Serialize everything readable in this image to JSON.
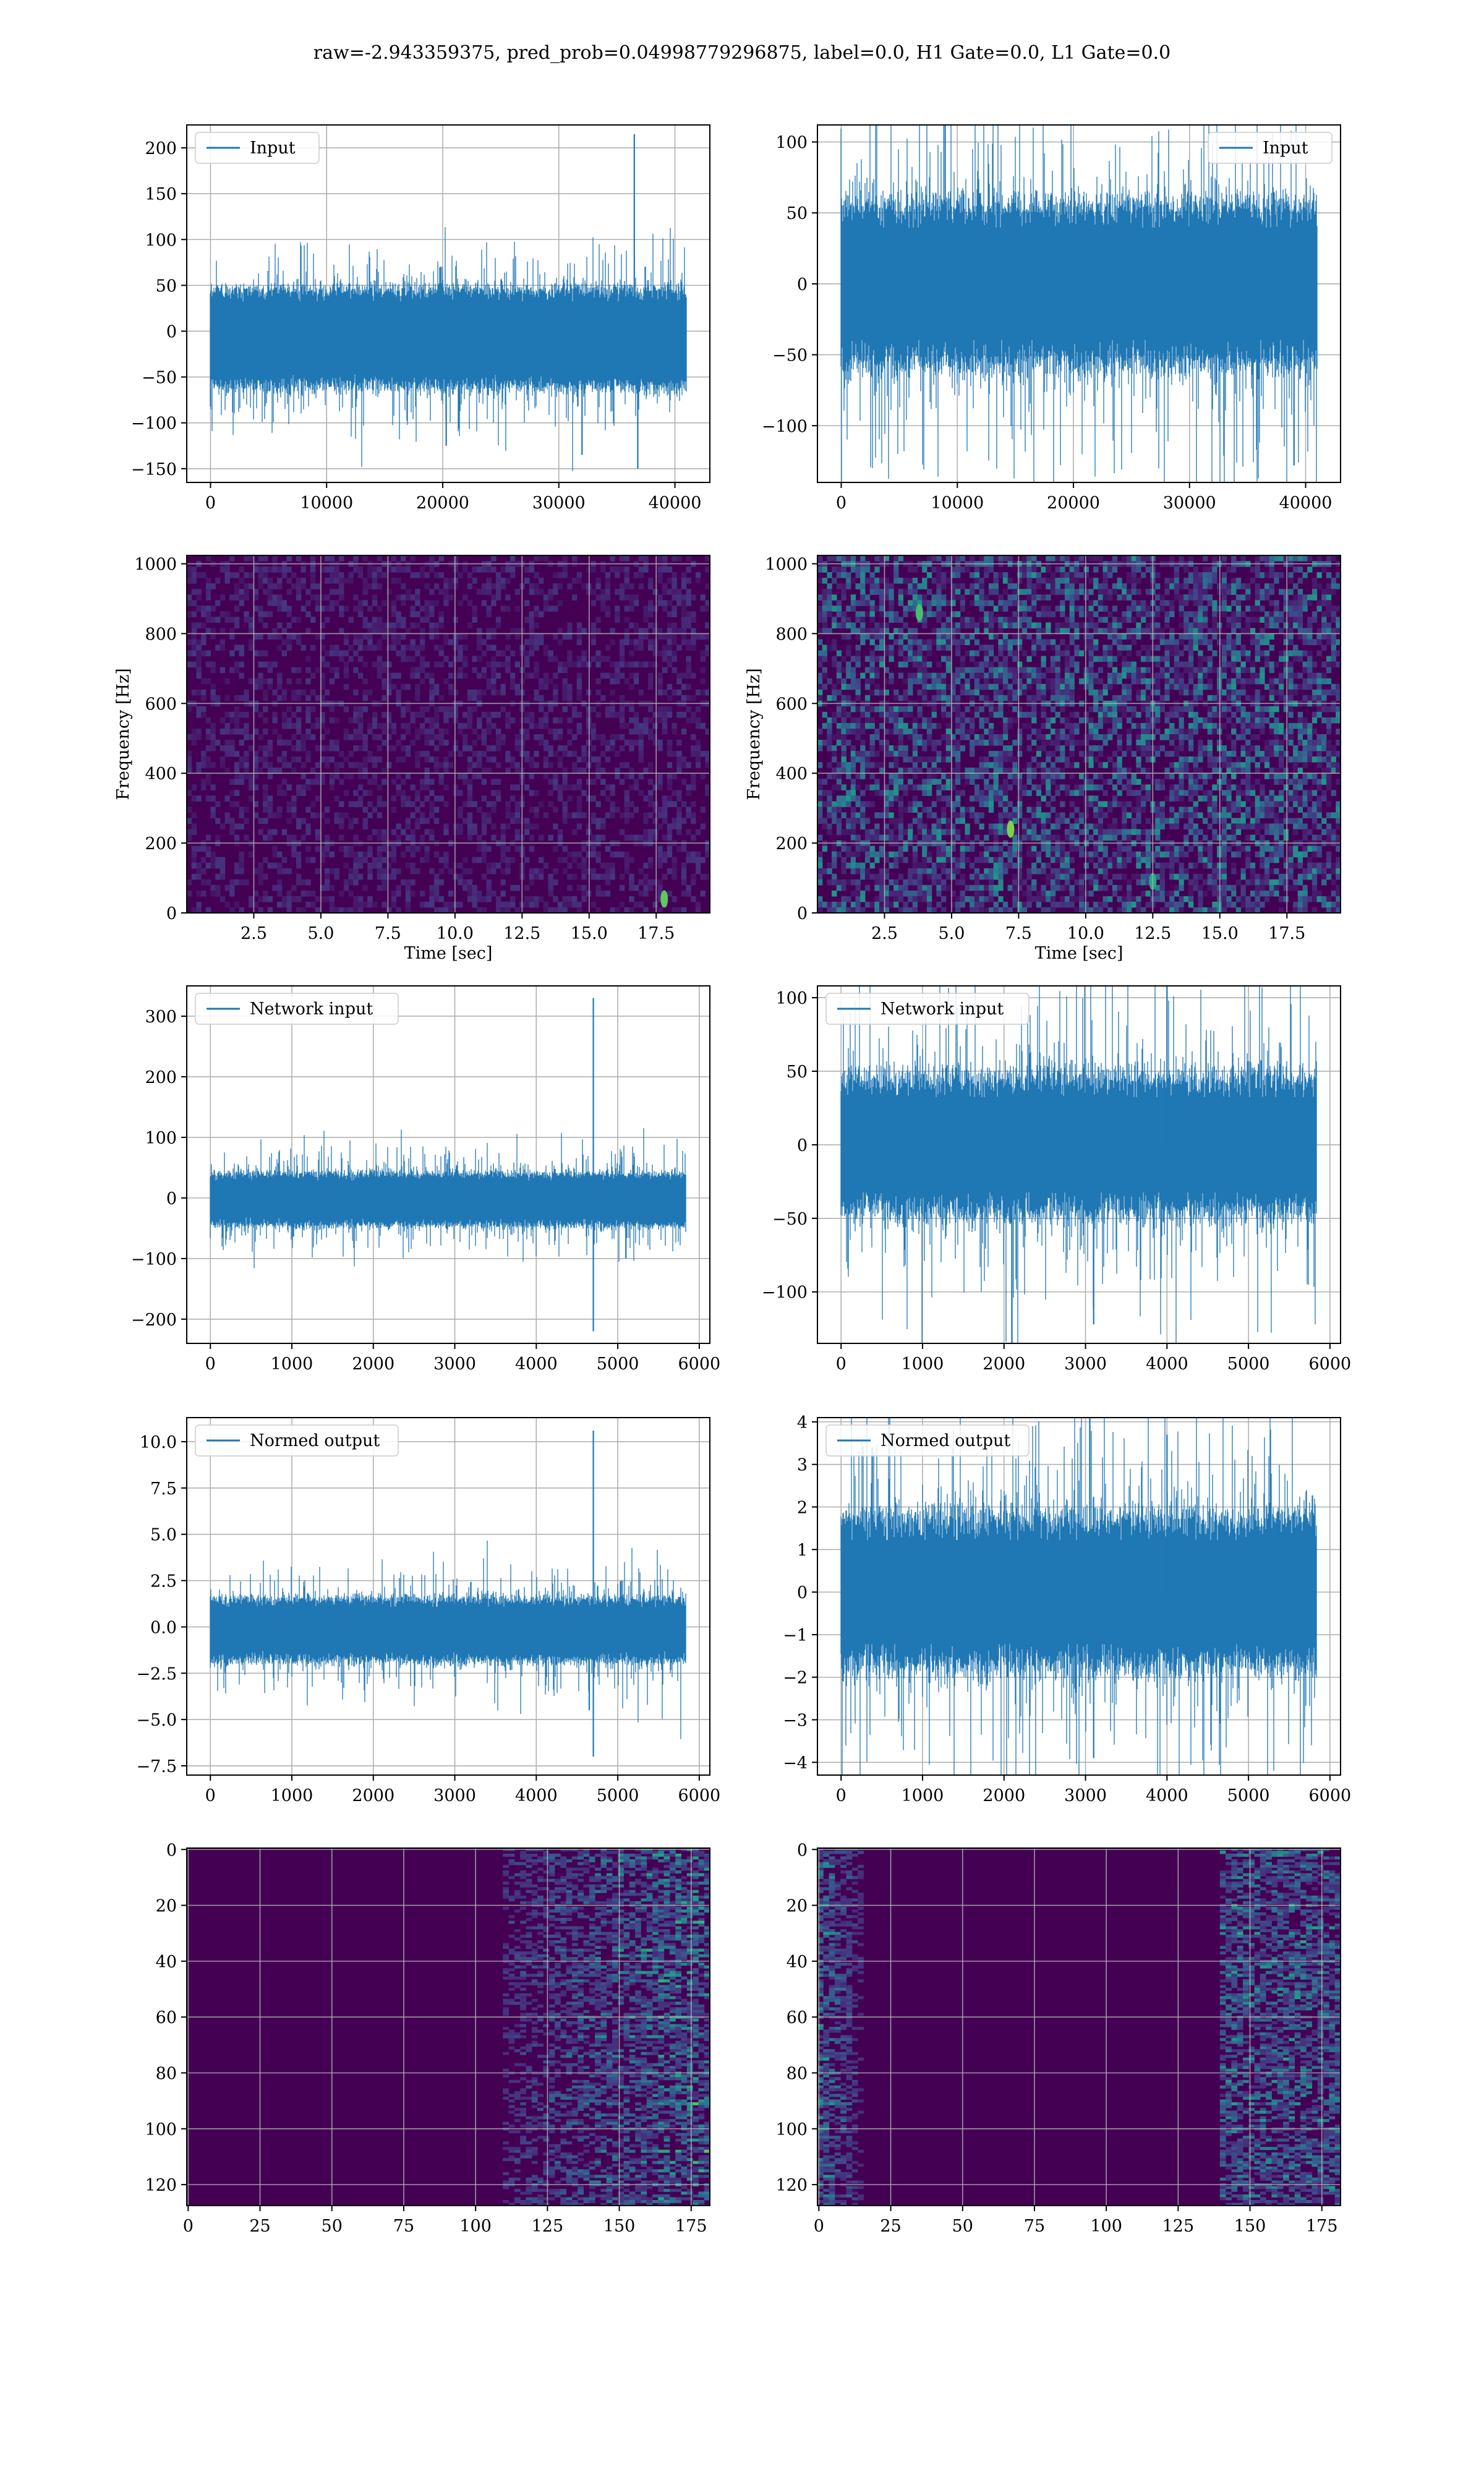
{
  "figure": {
    "title": "raw=-2.943359375, pred_prob=0.04998779296875, label=0.0, H1 Gate=0.0, L1 Gate=0.0",
    "colors": {
      "line": "#1f77b4",
      "grid": "#b0b0b0",
      "viridis_low": "#440154"
    }
  },
  "chart_data": [
    {
      "id": "input-h1",
      "type": "line",
      "row": 0,
      "col": 0,
      "x_count": 40960,
      "xlim": [
        -2048,
        43008
      ],
      "ylim": [
        -165,
        225
      ],
      "xticks": [
        0,
        10000,
        20000,
        30000,
        40000
      ],
      "xtick_labels": [
        "0",
        "10000",
        "20000",
        "30000",
        "40000"
      ],
      "yticks": [
        -150,
        -100,
        -50,
        0,
        50,
        100,
        150,
        200
      ],
      "ytick_labels": [
        "−150",
        "−100",
        "−50",
        "0",
        "50",
        "100",
        "150",
        "200"
      ],
      "legend": {
        "label": "Input",
        "loc": "upper left"
      },
      "xlabel": "",
      "ylabel": "",
      "envelope": {
        "mean": 0,
        "std": 20,
        "core_low": -60,
        "core_high": 45
      },
      "spikes": [
        {
          "x": 36500,
          "y": 215
        },
        {
          "x": 36800,
          "y": -150
        },
        {
          "x": 20300,
          "y": -125
        },
        {
          "x": 32000,
          "y": -135
        }
      ]
    },
    {
      "id": "input-l1",
      "type": "line",
      "row": 0,
      "col": 1,
      "x_count": 40960,
      "xlim": [
        -2048,
        43008
      ],
      "ylim": [
        -140,
        112
      ],
      "xticks": [
        0,
        10000,
        20000,
        30000,
        40000
      ],
      "xtick_labels": [
        "0",
        "10000",
        "20000",
        "30000",
        "40000"
      ],
      "yticks": [
        -100,
        -50,
        0,
        50,
        100
      ],
      "ytick_labels": [
        "−100",
        "−50",
        "0",
        "50",
        "100"
      ],
      "legend": {
        "label": "Input",
        "loc": "upper right"
      },
      "xlabel": "",
      "ylabel": "",
      "envelope": {
        "mean": 0,
        "std": 28,
        "core_low": -55,
        "core_high": 55
      },
      "spikes": [
        {
          "x": 39000,
          "y": -128
        }
      ]
    },
    {
      "id": "spec-h1",
      "type": "heatmap",
      "row": 1,
      "col": 0,
      "variant": "spectrogram",
      "xlim": [
        0,
        19.5
      ],
      "ylim": [
        0,
        1024
      ],
      "xticks": [
        2.5,
        5.0,
        7.5,
        10.0,
        12.5,
        15.0,
        17.5
      ],
      "xtick_labels": [
        "2.5",
        "5.0",
        "7.5",
        "10.0",
        "12.5",
        "15.0",
        "17.5"
      ],
      "yticks": [
        0,
        200,
        400,
        600,
        800,
        1000
      ],
      "ytick_labels": [
        "0",
        "200",
        "400",
        "600",
        "800",
        "1000"
      ],
      "xlabel": "Time [sec]",
      "ylabel": "Frequency [Hz]",
      "intensity": 0.12,
      "hotspots": [
        {
          "x": 17.8,
          "y": 40,
          "v": 0.75
        }
      ]
    },
    {
      "id": "spec-l1",
      "type": "heatmap",
      "row": 1,
      "col": 1,
      "variant": "spectrogram",
      "xlim": [
        0,
        19.5
      ],
      "ylim": [
        0,
        1024
      ],
      "xticks": [
        2.5,
        5.0,
        7.5,
        10.0,
        12.5,
        15.0,
        17.5
      ],
      "xtick_labels": [
        "2.5",
        "5.0",
        "7.5",
        "10.0",
        "12.5",
        "15.0",
        "17.5"
      ],
      "yticks": [
        0,
        200,
        400,
        600,
        800,
        1000
      ],
      "ytick_labels": [
        "0",
        "200",
        "400",
        "600",
        "800",
        "1000"
      ],
      "xlabel": "Time [sec]",
      "ylabel": "Frequency [Hz]",
      "intensity": 0.42,
      "hotspots": [
        {
          "x": 7.2,
          "y": 240,
          "v": 0.8
        },
        {
          "x": 12.5,
          "y": 90,
          "v": 0.6
        },
        {
          "x": 3.8,
          "y": 860,
          "v": 0.7
        }
      ]
    },
    {
      "id": "net-input-h1",
      "type": "line",
      "row": 2,
      "col": 0,
      "x_count": 5834,
      "xlim": [
        -290,
        6130
      ],
      "ylim": [
        -240,
        350
      ],
      "xticks": [
        0,
        1000,
        2000,
        3000,
        4000,
        5000,
        6000
      ],
      "xtick_labels": [
        "0",
        "1000",
        "2000",
        "3000",
        "4000",
        "5000",
        "6000"
      ],
      "yticks": [
        -200,
        -100,
        0,
        100,
        200,
        300
      ],
      "ytick_labels": [
        "−200",
        "−100",
        "0",
        "100",
        "200",
        "300"
      ],
      "legend": {
        "label": "Network input",
        "loc": "upper left"
      },
      "xlabel": "",
      "ylabel": "",
      "envelope": {
        "mean": 0,
        "std": 16,
        "core_low": -45,
        "core_high": 40
      },
      "spikes": [
        {
          "x": 4700,
          "y": 330
        },
        {
          "x": 4700,
          "y": -220
        },
        {
          "x": 5100,
          "y": -100
        }
      ]
    },
    {
      "id": "net-input-l1",
      "type": "line",
      "row": 2,
      "col": 1,
      "x_count": 5834,
      "xlim": [
        -290,
        6130
      ],
      "ylim": [
        -135,
        108
      ],
      "xticks": [
        0,
        1000,
        2000,
        3000,
        4000,
        5000,
        6000
      ],
      "xtick_labels": [
        "0",
        "1000",
        "2000",
        "3000",
        "4000",
        "5000",
        "6000"
      ],
      "yticks": [
        -100,
        -50,
        0,
        50,
        100
      ],
      "ytick_labels": [
        "−100",
        "−50",
        "0",
        "50",
        "100"
      ],
      "legend": {
        "label": "Network input",
        "loc": "upper left"
      },
      "xlabel": "",
      "ylabel": "",
      "envelope": {
        "mean": 0,
        "std": 25,
        "core_low": -45,
        "core_high": 45
      },
      "spikes": [
        {
          "x": 4000,
          "y": 115
        },
        {
          "x": 3100,
          "y": -122
        }
      ]
    },
    {
      "id": "normed-h1",
      "type": "line",
      "row": 3,
      "col": 0,
      "x_count": 5834,
      "xlim": [
        -290,
        6130
      ],
      "ylim": [
        -8,
        11.3
      ],
      "xticks": [
        0,
        1000,
        2000,
        3000,
        4000,
        5000,
        6000
      ],
      "xtick_labels": [
        "0",
        "1000",
        "2000",
        "3000",
        "4000",
        "5000",
        "6000"
      ],
      "yticks": [
        -7.5,
        -5.0,
        -2.5,
        0.0,
        2.5,
        5.0,
        7.5,
        10.0
      ],
      "ytick_labels": [
        "−7.5",
        "−5.0",
        "−2.5",
        "0.0",
        "2.5",
        "5.0",
        "7.5",
        "10.0"
      ],
      "legend": {
        "label": "Normed output",
        "loc": "upper left"
      },
      "xlabel": "",
      "ylabel": "",
      "envelope": {
        "mean": 0,
        "std": 0.7,
        "core_low": -1.8,
        "core_high": 1.5
      },
      "spikes": [
        {
          "x": 4700,
          "y": 10.6
        },
        {
          "x": 4700,
          "y": -7.0
        },
        {
          "x": 4650,
          "y": -4.5
        }
      ]
    },
    {
      "id": "normed-l1",
      "type": "line",
      "row": 3,
      "col": 1,
      "x_count": 5834,
      "xlim": [
        -290,
        6130
      ],
      "ylim": [
        -4.3,
        4.1
      ],
      "xticks": [
        0,
        1000,
        2000,
        3000,
        4000,
        5000,
        6000
      ],
      "xtick_labels": [
        "0",
        "1000",
        "2000",
        "3000",
        "4000",
        "5000",
        "6000"
      ],
      "yticks": [
        -4,
        -3,
        -2,
        -1,
        0,
        1,
        2,
        3,
        4
      ],
      "ytick_labels": [
        "−4",
        "−3",
        "−2",
        "−1",
        "0",
        "1",
        "2",
        "3",
        "4"
      ],
      "legend": {
        "label": "Normed output",
        "loc": "upper left"
      },
      "xlabel": "",
      "ylabel": "",
      "envelope": {
        "mean": 0,
        "std": 0.95,
        "core_low": -1.7,
        "core_high": 1.7
      },
      "spikes": [
        {
          "x": 4000,
          "y": 3.7
        },
        {
          "x": 3100,
          "y": -3.9
        }
      ]
    },
    {
      "id": "features-h1",
      "type": "heatmap",
      "row": 4,
      "col": 0,
      "variant": "features",
      "xlim": [
        -0.5,
        181.5
      ],
      "ylim": [
        127.5,
        -0.5
      ],
      "x_bins": 182,
      "y_bins": 128,
      "xticks": [
        0,
        25,
        50,
        75,
        100,
        125,
        150,
        175
      ],
      "xtick_labels": [
        "0",
        "25",
        "50",
        "75",
        "100",
        "125",
        "150",
        "175"
      ],
      "yticks": [
        0,
        20,
        40,
        60,
        80,
        100,
        120
      ],
      "ytick_labels": [
        "0",
        "20",
        "40",
        "60",
        "80",
        "100",
        "120"
      ],
      "xlabel": "",
      "ylabel": "",
      "active_region": [
        110,
        181
      ]
    },
    {
      "id": "features-l1",
      "type": "heatmap",
      "row": 4,
      "col": 1,
      "variant": "features",
      "xlim": [
        -0.5,
        181.5
      ],
      "ylim": [
        127.5,
        -0.5
      ],
      "x_bins": 182,
      "y_bins": 128,
      "xticks": [
        0,
        25,
        50,
        75,
        100,
        125,
        150,
        175
      ],
      "xtick_labels": [
        "0",
        "25",
        "50",
        "75",
        "100",
        "125",
        "150",
        "175"
      ],
      "yticks": [
        0,
        20,
        40,
        60,
        80,
        100,
        120
      ],
      "ytick_labels": [
        "0",
        "20",
        "40",
        "60",
        "80",
        "100",
        "120"
      ],
      "xlabel": "",
      "ylabel": "",
      "active_region_left": [
        0,
        15
      ],
      "active_region_right": [
        140,
        181
      ]
    }
  ]
}
